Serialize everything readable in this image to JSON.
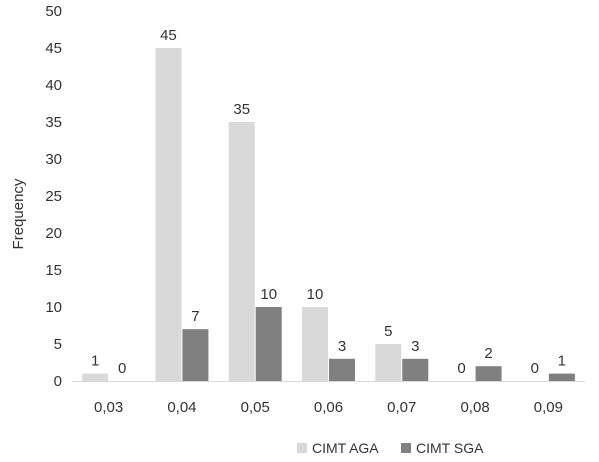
{
  "chart_data": {
    "type": "bar",
    "categories": [
      "0,03",
      "0,04",
      "0,05",
      "0,06",
      "0,07",
      "0,08",
      "0,09"
    ],
    "series": [
      {
        "name": "CIMT AGA",
        "values": [
          1,
          45,
          35,
          10,
          5,
          0,
          0
        ],
        "color": "#d9d9d9"
      },
      {
        "name": "CIMT SGA",
        "values": [
          0,
          7,
          10,
          3,
          3,
          2,
          1
        ],
        "color": "#808080"
      }
    ],
    "ylabel": "Frequency",
    "ylim": [
      0,
      50
    ],
    "yticks": [
      0,
      5,
      10,
      15,
      20,
      25,
      30,
      35,
      40,
      45,
      50
    ],
    "grid": false,
    "legend": "bottom-right"
  }
}
